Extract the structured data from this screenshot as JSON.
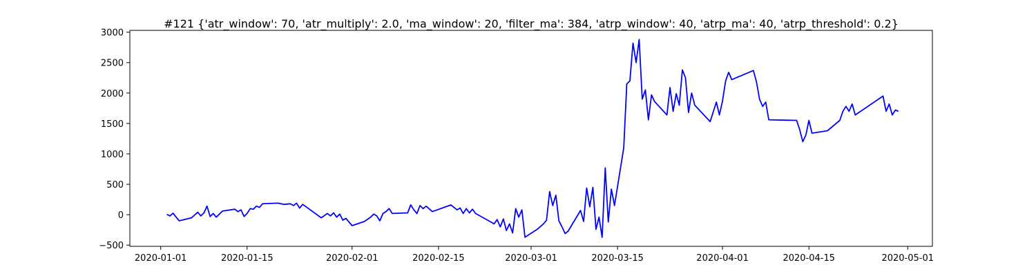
{
  "chart_data": {
    "type": "line",
    "title": "#121 {'atr_window': 70, 'atr_multiply': 2.0, 'ma_window': 20, 'filter_ma': 384, 'atrp_window': 40, 'atrp_ma': 40, 'atrp_threshold': 0.2}",
    "xlabel": "",
    "ylabel": "",
    "grid": false,
    "line_color": "#0000ff",
    "xlim": [
      "2019-12-27",
      "2020-05-05"
    ],
    "ylim": [
      -520,
      3030
    ],
    "x_ticks": [
      "2020-01-01",
      "2020-01-15",
      "2020-02-01",
      "2020-02-15",
      "2020-03-01",
      "2020-03-15",
      "2020-04-01",
      "2020-04-15",
      "2020-05-01"
    ],
    "y_ticks": [
      3000,
      2500,
      2000,
      1500,
      1000,
      500,
      0,
      -500
    ],
    "y_tick_labels": [
      "3000",
      "2500",
      "2000",
      "1500",
      "1000",
      "500",
      "0",
      "−500"
    ],
    "series": [
      {
        "points": [
          [
            "2020-01-02",
            5
          ],
          [
            "2020-01-02 12:00",
            -20
          ],
          [
            "2020-01-03",
            25
          ],
          [
            "2020-01-03 12:00",
            -40
          ],
          [
            "2020-01-04",
            -100
          ],
          [
            "2020-01-06",
            -50
          ],
          [
            "2020-01-07",
            40
          ],
          [
            "2020-01-07 12:00",
            -20
          ],
          [
            "2020-01-08",
            30
          ],
          [
            "2020-01-08 12:00",
            140
          ],
          [
            "2020-01-09",
            -30
          ],
          [
            "2020-01-09 12:00",
            20
          ],
          [
            "2020-01-10",
            -40
          ],
          [
            "2020-01-10 12:00",
            10
          ],
          [
            "2020-01-11",
            60
          ],
          [
            "2020-01-13",
            90
          ],
          [
            "2020-01-13 12:00",
            50
          ],
          [
            "2020-01-14",
            80
          ],
          [
            "2020-01-14 12:00",
            -30
          ],
          [
            "2020-01-15",
            20
          ],
          [
            "2020-01-15 12:00",
            100
          ],
          [
            "2020-01-16",
            90
          ],
          [
            "2020-01-16 12:00",
            140
          ],
          [
            "2020-01-17",
            120
          ],
          [
            "2020-01-17 12:00",
            180
          ],
          [
            "2020-01-20",
            190
          ],
          [
            "2020-01-21",
            170
          ],
          [
            "2020-01-22",
            180
          ],
          [
            "2020-01-22 12:00",
            150
          ],
          [
            "2020-01-23",
            190
          ],
          [
            "2020-01-23 12:00",
            110
          ],
          [
            "2020-01-24",
            170
          ],
          [
            "2020-01-27",
            -50
          ],
          [
            "2020-01-28",
            20
          ],
          [
            "2020-01-28 12:00",
            -20
          ],
          [
            "2020-01-29",
            30
          ],
          [
            "2020-01-29 12:00",
            -40
          ],
          [
            "2020-01-30",
            10
          ],
          [
            "2020-01-30 12:00",
            -90
          ],
          [
            "2020-01-31",
            -60
          ],
          [
            "2020-02-01",
            -180
          ],
          [
            "2020-02-03",
            -110
          ],
          [
            "2020-02-04",
            -40
          ],
          [
            "2020-02-04 12:00",
            10
          ],
          [
            "2020-02-05",
            -20
          ],
          [
            "2020-02-05 12:00",
            -100
          ],
          [
            "2020-02-06",
            20
          ],
          [
            "2020-02-06 12:00",
            50
          ],
          [
            "2020-02-07",
            100
          ],
          [
            "2020-02-07 12:00",
            20
          ],
          [
            "2020-02-10",
            30
          ],
          [
            "2020-02-10 12:00",
            160
          ],
          [
            "2020-02-11",
            80
          ],
          [
            "2020-02-11 12:00",
            20
          ],
          [
            "2020-02-12",
            150
          ],
          [
            "2020-02-12 12:00",
            100
          ],
          [
            "2020-02-13",
            140
          ],
          [
            "2020-02-14",
            50
          ],
          [
            "2020-02-17",
            160
          ],
          [
            "2020-02-18",
            80
          ],
          [
            "2020-02-18 12:00",
            110
          ],
          [
            "2020-02-19",
            20
          ],
          [
            "2020-02-19 12:00",
            100
          ],
          [
            "2020-02-20",
            30
          ],
          [
            "2020-02-20 12:00",
            90
          ],
          [
            "2020-02-21",
            20
          ],
          [
            "2020-02-24",
            -150
          ],
          [
            "2020-02-24 12:00",
            -80
          ],
          [
            "2020-02-25",
            -200
          ],
          [
            "2020-02-25 12:00",
            -70
          ],
          [
            "2020-02-26",
            -260
          ],
          [
            "2020-02-26 12:00",
            -150
          ],
          [
            "2020-02-27",
            -300
          ],
          [
            "2020-02-27 12:00",
            100
          ],
          [
            "2020-02-28",
            -40
          ],
          [
            "2020-02-28 12:00",
            80
          ],
          [
            "2020-02-29",
            -370
          ],
          [
            "2020-03-02",
            -240
          ],
          [
            "2020-03-03",
            -150
          ],
          [
            "2020-03-03 12:00",
            -90
          ],
          [
            "2020-03-04",
            380
          ],
          [
            "2020-03-04 12:00",
            150
          ],
          [
            "2020-03-05",
            320
          ],
          [
            "2020-03-05 12:00",
            -100
          ],
          [
            "2020-03-06",
            -200
          ],
          [
            "2020-03-06 12:00",
            -310
          ],
          [
            "2020-03-07",
            -270
          ],
          [
            "2020-03-09",
            70
          ],
          [
            "2020-03-09 12:00",
            -110
          ],
          [
            "2020-03-10",
            440
          ],
          [
            "2020-03-10 12:00",
            130
          ],
          [
            "2020-03-11",
            450
          ],
          [
            "2020-03-11 12:00",
            -240
          ],
          [
            "2020-03-12",
            -40
          ],
          [
            "2020-03-12 12:00",
            -370
          ],
          [
            "2020-03-13",
            770
          ],
          [
            "2020-03-13 12:00",
            -120
          ],
          [
            "2020-03-14",
            420
          ],
          [
            "2020-03-14 12:00",
            150
          ],
          [
            "2020-03-16",
            1100
          ],
          [
            "2020-03-16 12:00",
            2150
          ],
          [
            "2020-03-17",
            2200
          ],
          [
            "2020-03-17 12:00",
            2820
          ],
          [
            "2020-03-18",
            2500
          ],
          [
            "2020-03-18 12:00",
            2880
          ],
          [
            "2020-03-19",
            1900
          ],
          [
            "2020-03-19 12:00",
            2050
          ],
          [
            "2020-03-20",
            1560
          ],
          [
            "2020-03-20 12:00",
            1970
          ],
          [
            "2020-03-21",
            1860
          ],
          [
            "2020-03-23",
            1640
          ],
          [
            "2020-03-23 12:00",
            2090
          ],
          [
            "2020-03-24",
            1700
          ],
          [
            "2020-03-24 12:00",
            1990
          ],
          [
            "2020-03-25",
            1800
          ],
          [
            "2020-03-25 12:00",
            2380
          ],
          [
            "2020-03-26",
            2250
          ],
          [
            "2020-03-26 12:00",
            1680
          ],
          [
            "2020-03-27",
            2000
          ],
          [
            "2020-03-27 12:00",
            1800
          ],
          [
            "2020-03-30",
            1530
          ],
          [
            "2020-03-31",
            1850
          ],
          [
            "2020-03-31 12:00",
            1640
          ],
          [
            "2020-04-01",
            1870
          ],
          [
            "2020-04-01 12:00",
            2200
          ],
          [
            "2020-04-02",
            2340
          ],
          [
            "2020-04-02 12:00",
            2220
          ],
          [
            "2020-04-06",
            2370
          ],
          [
            "2020-04-06 12:00",
            2180
          ],
          [
            "2020-04-07",
            1900
          ],
          [
            "2020-04-07 12:00",
            1780
          ],
          [
            "2020-04-08",
            1850
          ],
          [
            "2020-04-08 12:00",
            1560
          ],
          [
            "2020-04-13",
            1550
          ],
          [
            "2020-04-13 12:00",
            1400
          ],
          [
            "2020-04-14",
            1200
          ],
          [
            "2020-04-14 12:00",
            1310
          ],
          [
            "2020-04-15",
            1550
          ],
          [
            "2020-04-15 12:00",
            1340
          ],
          [
            "2020-04-18",
            1380
          ],
          [
            "2020-04-20",
            1550
          ],
          [
            "2020-04-20 12:00",
            1700
          ],
          [
            "2020-04-21",
            1780
          ],
          [
            "2020-04-21 12:00",
            1700
          ],
          [
            "2020-04-22",
            1820
          ],
          [
            "2020-04-22 12:00",
            1640
          ],
          [
            "2020-04-27",
            1950
          ],
          [
            "2020-04-27 12:00",
            1700
          ],
          [
            "2020-04-28",
            1820
          ],
          [
            "2020-04-28 12:00",
            1640
          ],
          [
            "2020-04-29",
            1720
          ],
          [
            "2020-04-29 12:00",
            1700
          ]
        ]
      }
    ]
  }
}
